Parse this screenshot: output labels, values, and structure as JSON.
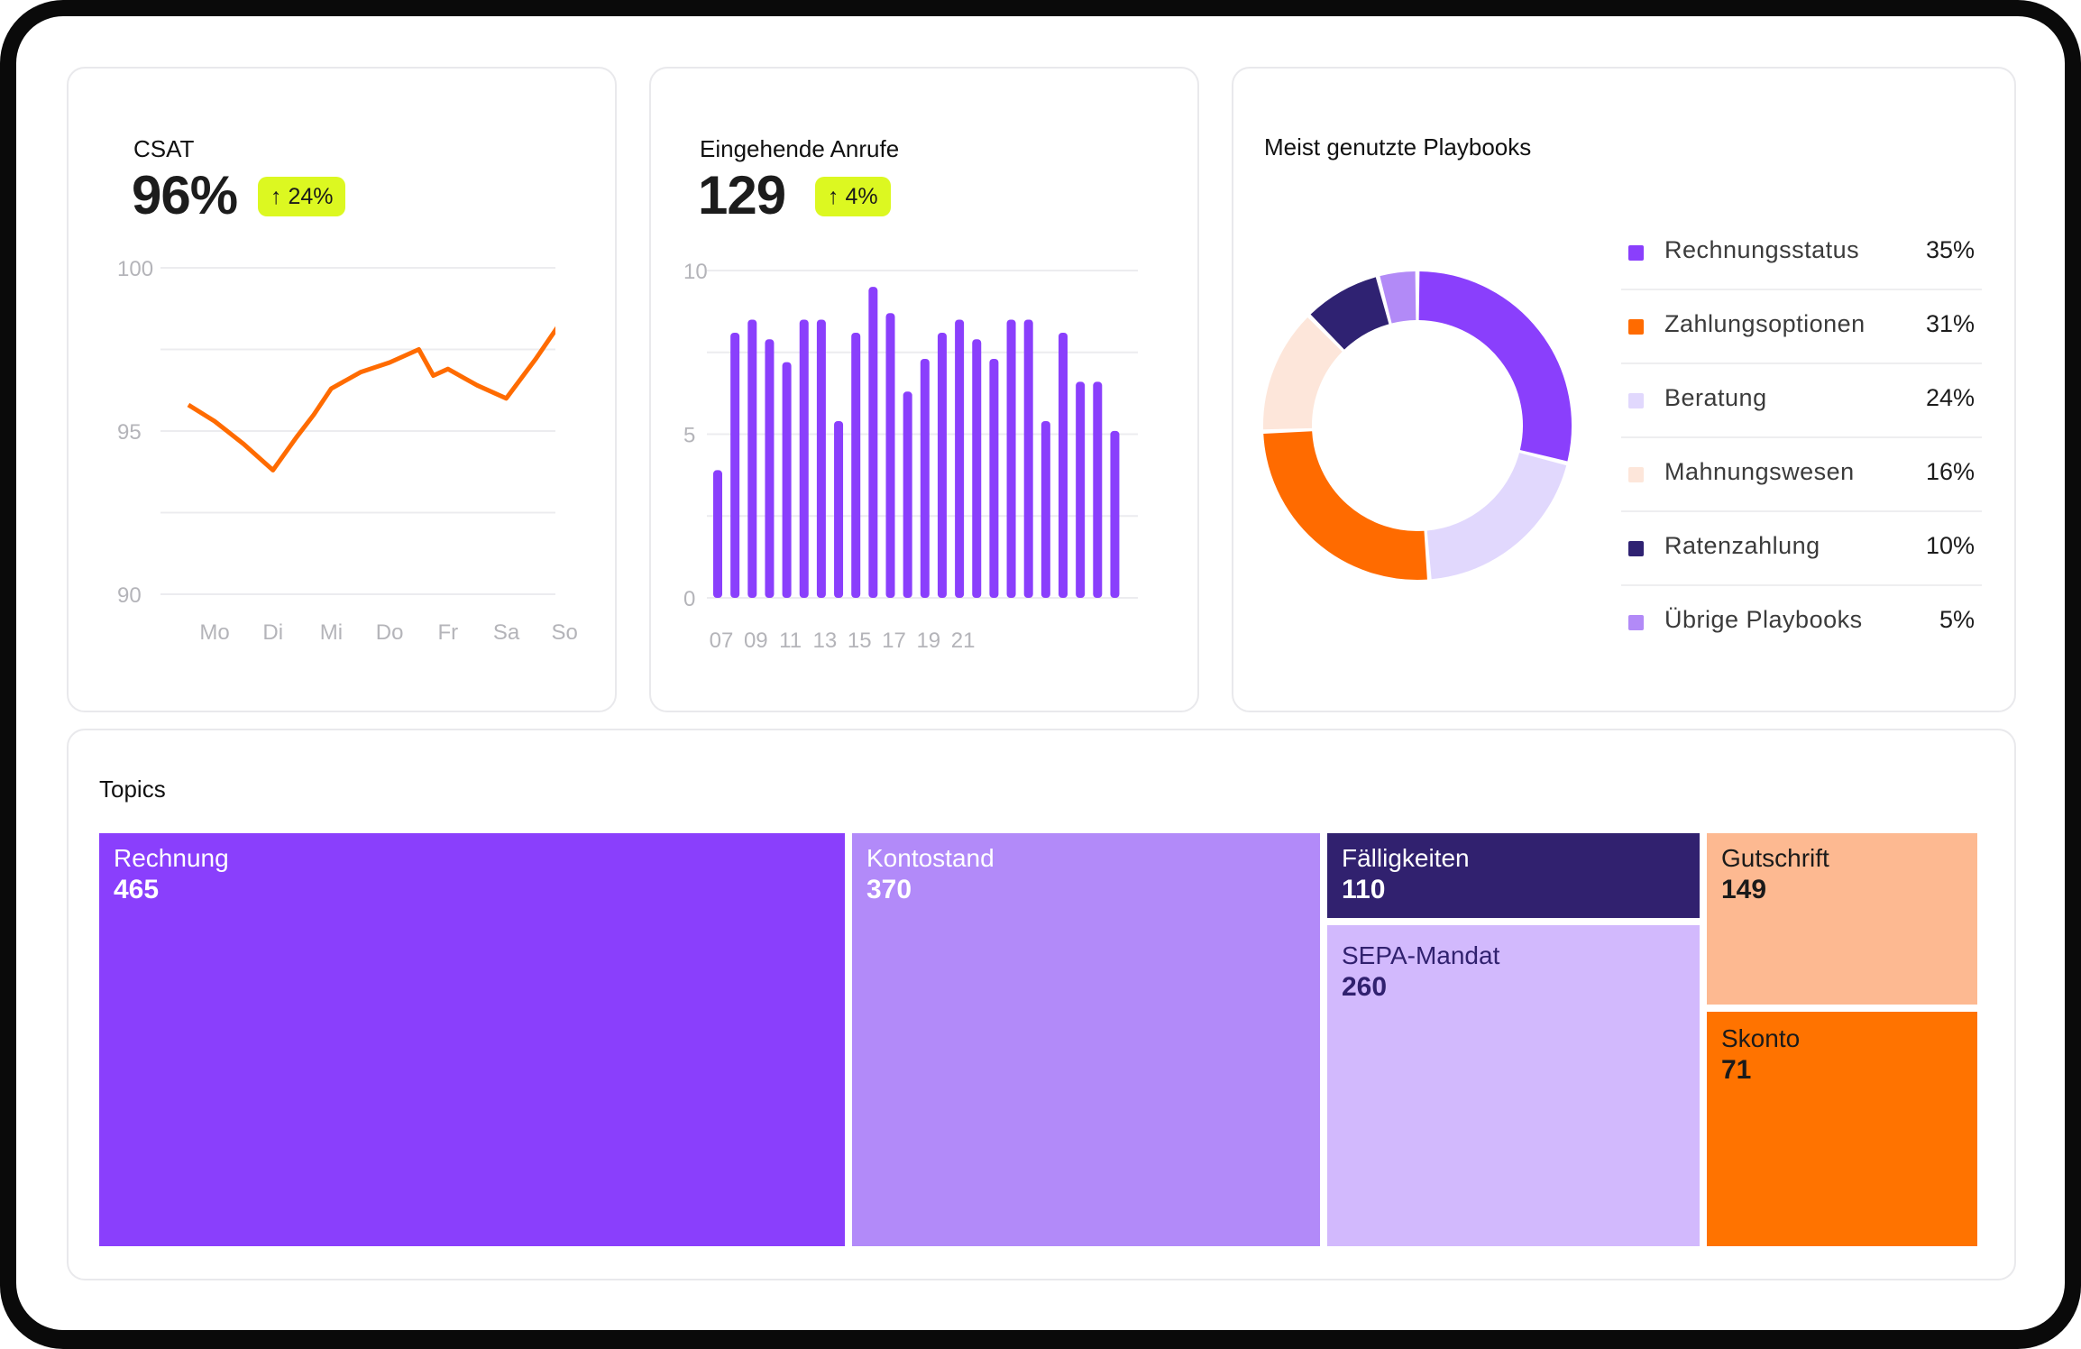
{
  "csat": {
    "title": "CSAT",
    "value": "96%",
    "badge": "↑ 24%",
    "chart_data": {
      "type": "line",
      "x": [
        "Mo",
        "Di",
        "Mi",
        "Do",
        "Fr",
        "Sa",
        "So"
      ],
      "y_ticks": [
        "100",
        "95",
        "90"
      ],
      "ylim": [
        90,
        100
      ],
      "series": [
        {
          "color": "#ff6b00",
          "x": [
            -0.45,
            0,
            0.5,
            1,
            1.4,
            1.7,
            2,
            2.5,
            3,
            3.5,
            3.75,
            4,
            4.5,
            5,
            5.5,
            6,
            6.3
          ],
          "values": [
            95.8,
            95.3,
            94.6,
            93.8,
            94.8,
            95.5,
            96.3,
            96.8,
            97.1,
            97.5,
            96.7,
            96.9,
            96.4,
            96.0,
            97.2,
            98.5,
            97.9
          ]
        }
      ]
    }
  },
  "calls": {
    "title": "Eingehende Anrufe",
    "value": "129",
    "badge": "↑ 4%",
    "chart_data": {
      "type": "bar",
      "color": "#8a3ffc",
      "x_ticks": [
        "07",
        "09",
        "11",
        "13",
        "15",
        "17",
        "19",
        "21"
      ],
      "y_ticks": [
        "10",
        "5",
        "0"
      ],
      "ylim": [
        0,
        10
      ],
      "values": [
        3.9,
        8.1,
        8.5,
        7.9,
        7.2,
        8.5,
        8.5,
        5.4,
        8.1,
        9.5,
        8.7,
        6.3,
        7.3,
        8.1,
        8.5,
        7.9,
        7.3,
        8.5,
        8.5,
        5.4,
        8.1,
        6.6,
        6.6,
        5.1
      ]
    }
  },
  "playbooks": {
    "title": "Meist genutzte Playbooks",
    "chart_data": {
      "type": "pie",
      "slices": [
        {
          "label": "Rechnungsstatus",
          "pct": "35%",
          "value": 35,
          "color": "#8a3ffc"
        },
        {
          "label": "Zahlungsoptionen",
          "pct": "31%",
          "value": 31,
          "color": "#ff6b00"
        },
        {
          "label": "Beratung",
          "pct": "24%",
          "value": 24,
          "color": "#e1d8fd"
        },
        {
          "label": "Mahnungswesen",
          "pct": "16%",
          "value": 16,
          "color": "#fde6da"
        },
        {
          "label": "Ratenzahlung",
          "pct": "10%",
          "value": 10,
          "color": "#2f2272"
        },
        {
          "label": "Übrige Playbooks",
          "pct": "5%",
          "value": 5,
          "color": "#b28af7"
        }
      ],
      "ring_order": [
        0,
        2,
        1,
        3,
        4,
        5
      ]
    }
  },
  "topics": {
    "title": "Topics",
    "chart_data": {
      "type": "treemap",
      "items": [
        {
          "label": "Rechnung",
          "value": "465",
          "color": "#8a3ffc",
          "text_color": "#ffffff"
        },
        {
          "label": "Kontostand",
          "value": "370",
          "color": "#b28af9",
          "text_color": "#ffffff"
        },
        {
          "label": "Fälligkeiten",
          "value": "110",
          "color": "#31216f",
          "text_color": "#ffffff"
        },
        {
          "label": "SEPA-Mandat",
          "value": "260",
          "color": "#d2b9fd",
          "text_color": "#31216f"
        },
        {
          "label": "Gutschrift",
          "value": "149",
          "color": "#fdb991",
          "text_color": "#1a1a1a"
        },
        {
          "label": "Skonto",
          "value": "71",
          "color": "#ff7300",
          "text_color": "#1a1a1a"
        }
      ]
    }
  }
}
